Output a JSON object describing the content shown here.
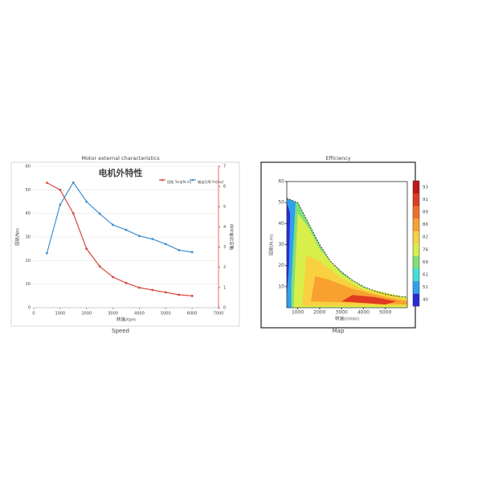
{
  "chart_data": [
    {
      "type": "line",
      "title": "Motor external characteristics",
      "subtitle": "电机外特性",
      "caption": "Speed",
      "x_label": "转速/rpm",
      "y_label": "扭矩/Nm",
      "y2_label": "输出功率/kW",
      "x": [
        500,
        1000,
        1500,
        2000,
        2500,
        3000,
        3500,
        4000,
        4500,
        5000,
        5500,
        6000
      ],
      "series": [
        {
          "name": "扭矩 Torq[N.m]",
          "color": "#d9483b",
          "values": [
            53,
            50,
            40,
            25,
            17.5,
            13,
            10.5,
            8.5,
            7.5,
            6.5,
            5.5,
            5
          ]
        },
        {
          "name": "输出功率 Pn[kw]",
          "color": "#3d8fd1",
          "axis": "y2",
          "values": [
            2.7,
            5.1,
            6.2,
            5.25,
            4.65,
            4.1,
            3.85,
            3.55,
            3.4,
            3.15,
            2.85,
            2.75
          ]
        }
      ],
      "xlim": [
        0,
        7000
      ],
      "xticks": [
        0,
        1000,
        2000,
        3000,
        4000,
        5000,
        6000,
        7000
      ],
      "ylim": [
        0,
        60
      ],
      "yticks": [
        0,
        10,
        20,
        30,
        40,
        50,
        60
      ],
      "y2lim": [
        0,
        7
      ],
      "y2ticks": [
        0,
        1,
        2,
        3,
        4,
        5,
        6,
        7
      ],
      "grid": true
    },
    {
      "type": "contour",
      "title": "Efficiency",
      "caption": "Map",
      "x_label": "转速(r/min)",
      "y_label": "扭矩(N.m)",
      "xlim": [
        500,
        6000
      ],
      "xticks": [
        1000,
        2000,
        3000,
        4000,
        5000
      ],
      "ylim": [
        0,
        60
      ],
      "yticks": [
        10,
        20,
        30,
        40,
        50,
        60
      ],
      "colorbar": {
        "ticks": [
          40,
          51,
          61,
          69,
          76,
          82,
          86,
          89,
          91,
          93
        ],
        "colors": [
          "#2a2ad8",
          "#2f9ff0",
          "#3fe0d8",
          "#7fe07a",
          "#d8ee4a",
          "#f8d040",
          "#f8a030",
          "#f07028",
          "#e03a20",
          "#c01818"
        ]
      },
      "boundary": {
        "x": [
          500,
          1000,
          1500,
          2000,
          2500,
          3000,
          3500,
          4000,
          4500,
          5000,
          5500,
          6000
        ],
        "y": [
          52,
          50,
          40,
          30,
          22,
          17,
          13,
          10,
          8,
          6.5,
          5.5,
          5
        ]
      },
      "regions": [
        {
          "level": 69,
          "x": [
            500,
            500,
            1000,
            1500,
            2000,
            2500,
            3000,
            3500,
            4000,
            4500,
            5000,
            5500,
            6000,
            6000
          ],
          "y": [
            0,
            52,
            50,
            40,
            30,
            22,
            17,
            13,
            10,
            8,
            6.5,
            5.5,
            5,
            0
          ]
        },
        {
          "level": 51,
          "x": [
            500,
            500,
            900,
            800,
            700,
            700
          ],
          "y": [
            0,
            52,
            50,
            30,
            10,
            0
          ]
        },
        {
          "level": 40,
          "x": [
            500,
            500,
            650,
            600
          ],
          "y": [
            5,
            50,
            45,
            20
          ]
        },
        {
          "level": 76,
          "x": [
            800,
            1000,
            1500,
            2000,
            3000,
            4000,
            6000,
            6000
          ],
          "y": [
            0,
            45,
            38,
            28,
            16,
            9.5,
            4.8,
            0
          ]
        },
        {
          "level": 82,
          "x": [
            1200,
            1400,
            2000,
            3000,
            4000,
            6000,
            6000
          ],
          "y": [
            1,
            25,
            22,
            14,
            8.5,
            4,
            1
          ]
        },
        {
          "level": 86,
          "x": [
            1600,
            1800,
            2500,
            3500,
            5000,
            6000,
            6000
          ],
          "y": [
            3,
            15,
            13,
            9,
            5,
            3,
            1.5
          ]
        },
        {
          "level": 91,
          "x": [
            3000,
            3500,
            4500,
            5500,
            5000
          ],
          "y": [
            3,
            6,
            5,
            3,
            1.5
          ]
        }
      ]
    }
  ]
}
